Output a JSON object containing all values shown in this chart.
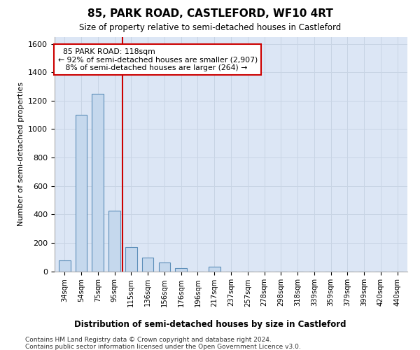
{
  "title": "85, PARK ROAD, CASTLEFORD, WF10 4RT",
  "subtitle": "Size of property relative to semi-detached houses in Castleford",
  "xlabel": "Distribution of semi-detached houses by size in Castleford",
  "ylabel": "Number of semi-detached properties",
  "footnote1": "Contains HM Land Registry data © Crown copyright and database right 2024.",
  "footnote2": "Contains public sector information licensed under the Open Government Licence v3.0.",
  "bins": [
    "34sqm",
    "54sqm",
    "75sqm",
    "95sqm",
    "115sqm",
    "136sqm",
    "156sqm",
    "176sqm",
    "196sqm",
    "217sqm",
    "237sqm",
    "257sqm",
    "278sqm",
    "298sqm",
    "318sqm",
    "339sqm",
    "359sqm",
    "379sqm",
    "399sqm",
    "420sqm",
    "440sqm"
  ],
  "values": [
    75,
    1100,
    1250,
    425,
    170,
    95,
    60,
    20,
    0,
    30,
    0,
    0,
    0,
    0,
    0,
    0,
    0,
    0,
    0,
    0,
    0
  ],
  "bar_color": "#c5d8ed",
  "bar_edge_color": "#5b8db8",
  "grid_color": "#c8d4e4",
  "background_color": "#dce6f5",
  "red_line_x": 3.5,
  "property_sqm": 118,
  "pct_smaller": 92,
  "count_smaller": 2907,
  "pct_larger": 8,
  "count_larger": 264,
  "annotation_box_color": "#ffffff",
  "annotation_box_edge": "#cc0000",
  "ylim": [
    0,
    1650
  ],
  "yticks": [
    0,
    200,
    400,
    600,
    800,
    1000,
    1200,
    1400,
    1600
  ]
}
